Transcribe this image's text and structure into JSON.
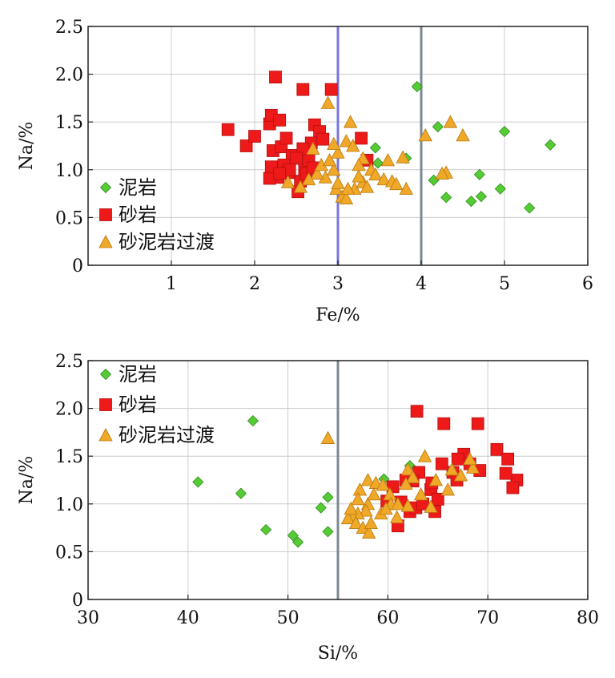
{
  "colors": {
    "mudstone": "#55cc33",
    "sandstone": "#ee1a1a",
    "transition": "#f0a828",
    "grid": "#cccccc",
    "frame": "#222222",
    "vline_blue": "#7777dd",
    "vline_gray": "#7a8a90"
  },
  "legend": [
    {
      "key": "mudstone",
      "label": "泥岩",
      "marker": "diamond"
    },
    {
      "key": "sandstone",
      "label": "砂岩",
      "marker": "square"
    },
    {
      "key": "transition",
      "label": "砂泥岩过渡",
      "marker": "triangle"
    }
  ],
  "chart_data": [
    {
      "type": "scatter",
      "xlabel": "Fe/%",
      "ylabel": "Na/%",
      "xlim": [
        0,
        6
      ],
      "ylim": [
        0,
        2.5
      ],
      "xticks": [
        1,
        2,
        3,
        4,
        5,
        6
      ],
      "yticks": [
        0,
        0.5,
        1.0,
        1.5,
        2.0,
        2.5
      ],
      "ytick_labels": [
        "0",
        "0.5",
        "1.0",
        "1.5",
        "2.0",
        "2.5"
      ],
      "grid": true,
      "legend_position": "bottom-left",
      "vlines": [
        {
          "x": 3,
          "color_key": "vline_blue"
        },
        {
          "x": 4,
          "color_key": "vline_gray"
        }
      ],
      "series": [
        {
          "name": "泥岩",
          "key": "mudstone",
          "points": [
            [
              3.95,
              1.87
            ],
            [
              4.2,
              1.45
            ],
            [
              5.0,
              1.4
            ],
            [
              5.55,
              1.26
            ],
            [
              3.45,
              1.23
            ],
            [
              3.82,
              1.12
            ],
            [
              3.48,
              1.07
            ],
            [
              4.15,
              0.89
            ],
            [
              4.3,
              0.71
            ],
            [
              4.6,
              0.67
            ],
            [
              4.72,
              0.72
            ],
            [
              4.95,
              0.8
            ],
            [
              4.7,
              0.95
            ],
            [
              5.3,
              0.6
            ]
          ]
        },
        {
          "name": "砂岩",
          "key": "sandstone",
          "points": [
            [
              2.25,
              1.97
            ],
            [
              2.58,
              1.84
            ],
            [
              2.92,
              1.84
            ],
            [
              1.68,
              1.42
            ],
            [
              1.9,
              1.25
            ],
            [
              2.0,
              1.35
            ],
            [
              2.18,
              1.48
            ],
            [
              2.2,
              1.57
            ],
            [
              2.3,
              1.52
            ],
            [
              2.22,
              1.2
            ],
            [
              2.32,
              1.24
            ],
            [
              2.38,
              1.33
            ],
            [
              2.45,
              1.15
            ],
            [
              2.35,
              1.05
            ],
            [
              2.28,
              0.92
            ],
            [
              2.18,
              0.91
            ],
            [
              2.4,
              0.97
            ],
            [
              2.52,
              0.77
            ],
            [
              2.55,
              0.88
            ],
            [
              2.6,
              1.0
            ],
            [
              2.65,
              1.1
            ],
            [
              2.72,
              1.47
            ],
            [
              2.78,
              1.4
            ],
            [
              2.68,
              1.28
            ],
            [
              2.82,
              1.32
            ],
            [
              2.58,
              1.22
            ],
            [
              2.62,
              0.96
            ],
            [
              2.7,
              1.02
            ],
            [
              3.28,
              1.33
            ],
            [
              3.35,
              1.1
            ],
            [
              2.5,
              1.12
            ],
            [
              2.42,
              1.0
            ],
            [
              2.2,
              1.03
            ],
            [
              2.3,
              0.96
            ]
          ]
        },
        {
          "name": "砂泥岩过渡",
          "key": "transition",
          "points": [
            [
              2.88,
              1.7
            ],
            [
              3.15,
              1.5
            ],
            [
              3.1,
              1.3
            ],
            [
              3.18,
              1.25
            ],
            [
              3.0,
              1.18
            ],
            [
              3.3,
              1.12
            ],
            [
              3.25,
              1.05
            ],
            [
              3.4,
              1.0
            ],
            [
              3.45,
              0.95
            ],
            [
              3.55,
              0.9
            ],
            [
              3.65,
              0.88
            ],
            [
              3.7,
              0.85
            ],
            [
              3.82,
              0.8
            ],
            [
              3.6,
              1.1
            ],
            [
              3.78,
              1.13
            ],
            [
              2.95,
              1.0
            ],
            [
              2.98,
              0.8
            ],
            [
              3.05,
              0.72
            ],
            [
              3.1,
              0.7
            ],
            [
              3.2,
              0.8
            ],
            [
              3.3,
              0.87
            ],
            [
              2.85,
              0.92
            ],
            [
              2.75,
              0.96
            ],
            [
              2.8,
              1.05
            ],
            [
              2.95,
              1.27
            ],
            [
              2.7,
              1.22
            ],
            [
              2.4,
              0.87
            ],
            [
              2.55,
              0.82
            ],
            [
              2.65,
              0.9
            ],
            [
              4.05,
              1.36
            ],
            [
              4.3,
              0.97
            ],
            [
              4.35,
              1.5
            ],
            [
              4.5,
              1.36
            ],
            [
              4.25,
              0.96
            ],
            [
              3.12,
              0.8
            ],
            [
              3.25,
              0.93
            ],
            [
              3.35,
              0.82
            ],
            [
              3.0,
              0.86
            ],
            [
              2.9,
              1.1
            ]
          ]
        }
      ]
    },
    {
      "type": "scatter",
      "xlabel": "Si/%",
      "ylabel": "Na/%",
      "xlim": [
        30,
        80
      ],
      "ylim": [
        0,
        2.5
      ],
      "xticks": [
        30,
        40,
        50,
        60,
        70,
        80
      ],
      "yticks": [
        0,
        0.5,
        1.0,
        1.5,
        2.0,
        2.5
      ],
      "ytick_labels": [
        "0",
        "0.5",
        "1.0",
        "1.5",
        "2.0",
        "2.5"
      ],
      "grid": true,
      "legend_position": "top-left",
      "vlines": [
        {
          "x": 55,
          "color_key": "vline_gray"
        }
      ],
      "series": [
        {
          "name": "泥岩",
          "key": "mudstone",
          "points": [
            [
              41.0,
              1.23
            ],
            [
              45.3,
              1.11
            ],
            [
              46.5,
              1.87
            ],
            [
              47.8,
              0.73
            ],
            [
              50.5,
              0.67
            ],
            [
              51.0,
              0.6
            ],
            [
              53.3,
              0.96
            ],
            [
              54.0,
              1.07
            ],
            [
              54.0,
              0.71
            ],
            [
              59.6,
              1.26
            ],
            [
              62.2,
              1.4
            ]
          ]
        },
        {
          "name": "砂岩",
          "key": "sandstone",
          "points": [
            [
              62.9,
              1.97
            ],
            [
              65.6,
              1.84
            ],
            [
              69.0,
              1.84
            ],
            [
              70.9,
              1.57
            ],
            [
              72.0,
              1.47
            ],
            [
              72.9,
              1.25
            ],
            [
              72.5,
              1.17
            ],
            [
              71.8,
              1.32
            ],
            [
              67.6,
              1.52
            ],
            [
              68.2,
              1.42
            ],
            [
              69.2,
              1.35
            ],
            [
              67.0,
              1.47
            ],
            [
              66.5,
              1.33
            ],
            [
              66.9,
              1.25
            ],
            [
              65.4,
              1.42
            ],
            [
              64.3,
              1.15
            ],
            [
              63.1,
              1.33
            ],
            [
              62.5,
              1.24
            ],
            [
              61.8,
              1.25
            ],
            [
              60.5,
              1.18
            ],
            [
              59.9,
              1.03
            ],
            [
              61.0,
              0.77
            ],
            [
              62.2,
              0.92
            ],
            [
              62.8,
              0.96
            ],
            [
              63.5,
              1.0
            ],
            [
              64.7,
              0.92
            ],
            [
              65.0,
              1.05
            ],
            [
              64.4,
              1.22
            ],
            [
              61.3,
              1.02
            ]
          ]
        },
        {
          "name": "砂泥岩过渡",
          "key": "transition",
          "points": [
            [
              54.0,
              1.69
            ],
            [
              63.7,
              1.5
            ],
            [
              62.0,
              1.36
            ],
            [
              62.5,
              1.28
            ],
            [
              58.0,
              1.25
            ],
            [
              57.2,
              1.15
            ],
            [
              58.8,
              1.22
            ],
            [
              59.5,
              1.2
            ],
            [
              60.2,
              1.1
            ],
            [
              58.0,
              1.0
            ],
            [
              57.8,
              0.93
            ],
            [
              57.0,
              0.9
            ],
            [
              56.5,
              0.86
            ],
            [
              56.0,
              0.85
            ],
            [
              56.8,
              0.8
            ],
            [
              57.5,
              0.75
            ],
            [
              58.1,
              0.7
            ],
            [
              58.3,
              0.8
            ],
            [
              59.3,
              0.9
            ],
            [
              60.3,
              1.0
            ],
            [
              61.0,
              1.0
            ],
            [
              62.0,
              0.98
            ],
            [
              63.3,
              1.1
            ],
            [
              64.3,
              0.97
            ],
            [
              64.8,
              1.25
            ],
            [
              66.0,
              1.15
            ],
            [
              67.3,
              1.3
            ],
            [
              68.5,
              1.38
            ],
            [
              68.2,
              1.47
            ],
            [
              66.4,
              1.36
            ],
            [
              57.0,
              1.05
            ],
            [
              58.6,
              1.1
            ],
            [
              59.8,
              0.95
            ],
            [
              61.8,
              1.21
            ],
            [
              60.9,
              0.86
            ],
            [
              56.3,
              0.95
            ]
          ]
        }
      ]
    }
  ]
}
